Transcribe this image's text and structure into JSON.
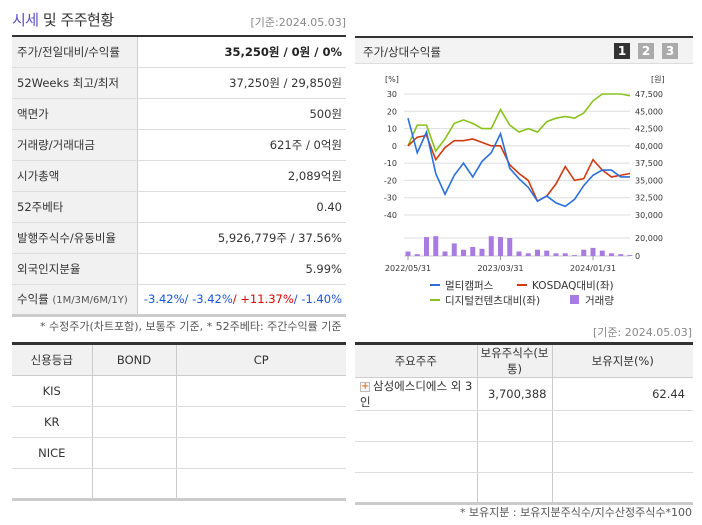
{
  "header": {
    "title_highlight": "시세",
    "title_rest": " 및 주주현황",
    "as_of": "[기준:2024.05.03]"
  },
  "quote": {
    "rows": [
      {
        "label": "주가/전일대비/수익률",
        "value": "35,250원 / 0원 / 0%"
      },
      {
        "label": "52Weeks 최고/최저",
        "value": "37,250원 / 29,850원"
      },
      {
        "label": "액면가",
        "value": "500원"
      },
      {
        "label": "거래량/거래대금",
        "value": "621주 / 0억원"
      },
      {
        "label": "시가총액",
        "value": "2,089억원"
      },
      {
        "label": "52주베타",
        "value": "0.40"
      },
      {
        "label": "발행주식수/유동비율",
        "value": "5,926,779주 / 37.56%"
      },
      {
        "label": "외국인지분율",
        "value": "5.99%"
      }
    ],
    "returns_label": "수익률",
    "returns_period": "(1M/3M/6M/1Y)",
    "returns": [
      "-3.42%",
      "/ -3.42%",
      "/ +11.37%",
      "/ -1.40%"
    ],
    "footnote": "* 수정주가(차트포함), 보통주 기준, * 52주베타: 주간수익률 기준"
  },
  "chart_panel": {
    "title": "주가/상대수익률",
    "pages": [
      "1",
      "2",
      "3"
    ],
    "active_page": "1"
  },
  "chart_data": {
    "type": "line",
    "left_unit": "[%]",
    "right_unit": "[원]",
    "left_ticks": [
      "30",
      "20",
      "10",
      "0",
      "-10",
      "-20",
      "-30",
      "-40"
    ],
    "right_ticks": [
      "47,500",
      "45,000",
      "42,500",
      "40,000",
      "37,500",
      "35,000",
      "32,500",
      "30,000"
    ],
    "volume_ticks": [
      "20,000",
      "0"
    ],
    "x_labels": [
      "2022/05/31",
      "2023/03/31",
      "2024/01/31"
    ],
    "ylim": [
      -40,
      30
    ],
    "series": [
      {
        "name": "멀티캠퍼스",
        "color": "#2a6fdb",
        "values": [
          16,
          -4,
          8,
          -16,
          -28,
          -17,
          -10,
          -18,
          -9,
          -4,
          7,
          -13,
          -19,
          -24,
          -32,
          -29,
          -33,
          -35,
          -31,
          -23,
          -17,
          -14,
          -14,
          -18,
          -18
        ]
      },
      {
        "name": "KOSDAQ대비(좌)",
        "color": "#d03a10",
        "values": [
          0,
          5,
          6,
          -8,
          -1,
          3,
          3,
          4,
          2,
          0,
          0,
          -11,
          -16,
          -20,
          -32,
          -29,
          -22,
          -12,
          -20,
          -19,
          -8,
          -14,
          -18,
          -17,
          -16
        ]
      },
      {
        "name": "디지털컨텐츠대비(좌)",
        "color": "#88c21a",
        "values": [
          0,
          12,
          12,
          -3,
          4,
          13,
          15,
          13,
          10,
          10,
          21,
          12,
          8,
          10,
          8,
          14,
          16,
          17,
          16,
          19,
          26,
          30,
          30,
          30,
          29
        ]
      }
    ],
    "volume": {
      "name": "거래량",
      "color": "#a77be0",
      "values": [
        5000,
        2000,
        21000,
        22000,
        5000,
        14000,
        7000,
        10000,
        8000,
        22000,
        21000,
        20000,
        5000,
        3000,
        7000,
        6000,
        3000,
        3000,
        1000,
        7000,
        9000,
        6000,
        3000,
        2000,
        1000
      ]
    }
  },
  "holders_as_of": "[기준: 2024.05.03]",
  "credit": {
    "headers": [
      "신용등급",
      "BOND",
      "CP"
    ],
    "rows": [
      [
        "KIS",
        "",
        ""
      ],
      [
        "KR",
        "",
        ""
      ],
      [
        "NICE",
        "",
        ""
      ],
      [
        "",
        "",
        ""
      ]
    ]
  },
  "holders": {
    "headers": [
      "주요주주",
      "보유주식수(보통)",
      "보유지분(%)"
    ],
    "rows": [
      [
        "삼성에스디에스 외 3인",
        "3,700,388",
        "62.44"
      ],
      [
        "",
        "",
        ""
      ],
      [
        "",
        "",
        ""
      ],
      [
        "",
        "",
        ""
      ]
    ],
    "footnote": "* 보유지분 : 보유지분주식수/지수산정주식수*100"
  }
}
